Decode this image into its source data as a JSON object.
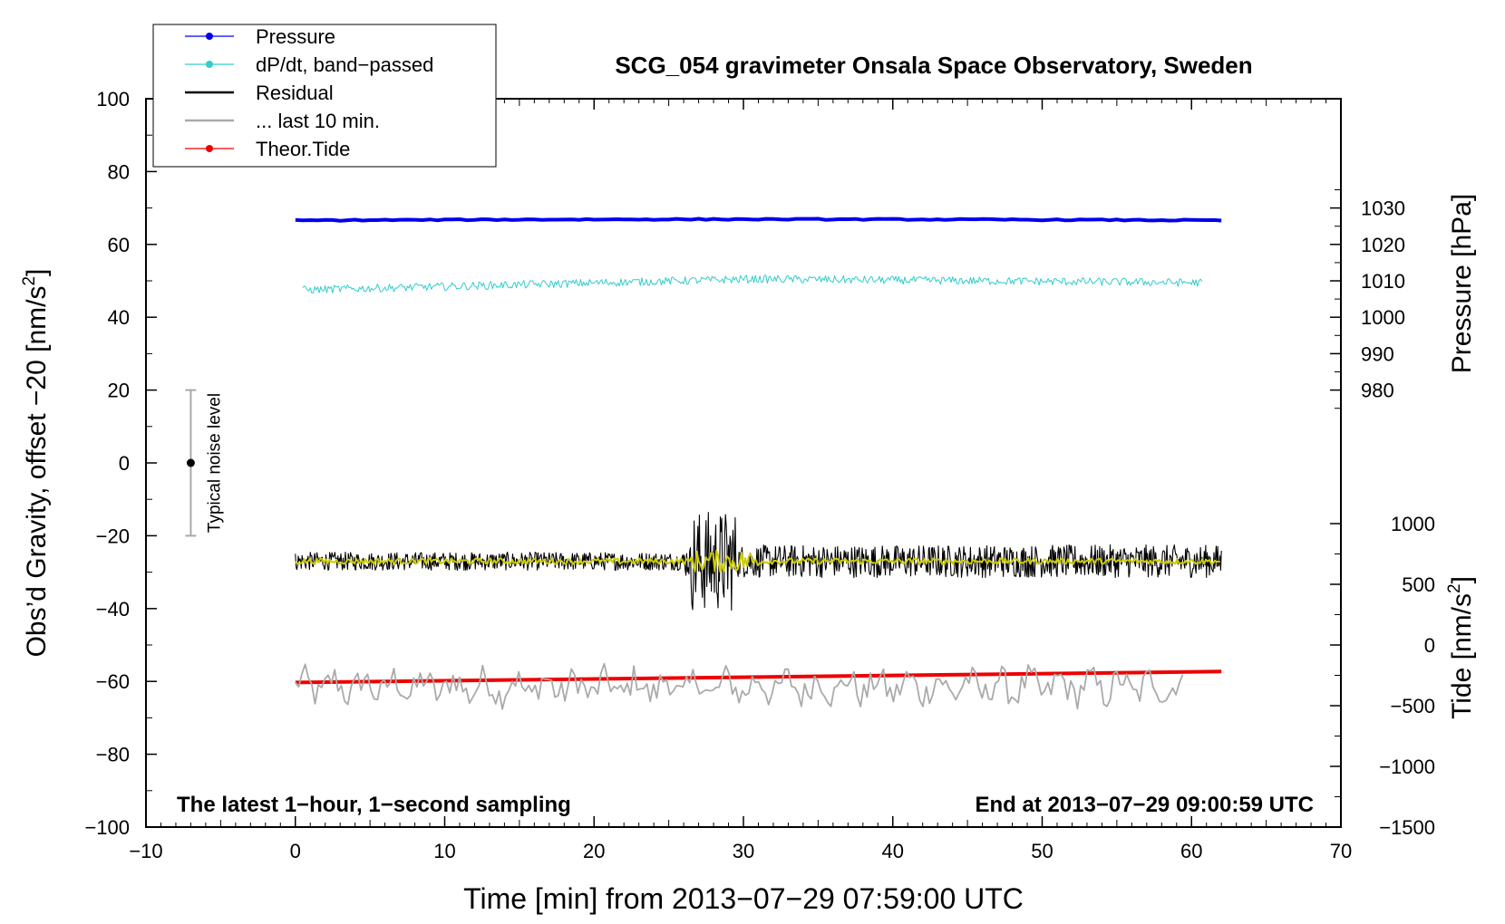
{
  "chart_data": {
    "type": "line",
    "title": "SCG_054 gravimeter Onsala Space Observatory, Sweden",
    "xlabel": "Time [min] from 2013−07−29 07:59:00 UTC",
    "ylabel_left_main": "Obs’d Gravity, offset −20 [nm/s",
    "ylabel_left_sup": "2",
    "ylabel_left_end": "]",
    "ylabel_right_top": "Pressure [hPa]",
    "ylabel_right_bottom_main": "Tide [nm/s",
    "ylabel_right_bottom_sup": "2",
    "ylabel_right_bottom_end": "]",
    "xlim": [
      -10,
      70
    ],
    "ylim": [
      -100,
      100
    ],
    "x_ticks": [
      -10,
      0,
      10,
      20,
      30,
      40,
      50,
      60,
      70
    ],
    "x_tick_labels": [
      "−10",
      "0",
      "10",
      "20",
      "30",
      "40",
      "50",
      "60",
      "70"
    ],
    "y_ticks": [
      100,
      80,
      60,
      40,
      20,
      0,
      -20,
      -40,
      -60,
      -80,
      -100
    ],
    "y_tick_labels": [
      "100",
      "80",
      "60",
      "40",
      "20",
      "0",
      "−20",
      "−40",
      "−60",
      "−80",
      "−100"
    ],
    "pressure_axis": {
      "ticks": [
        1030,
        1020,
        1010,
        1000,
        990,
        980
      ],
      "labels": [
        "1030",
        "1020",
        "1010",
        "1000",
        "990",
        "980"
      ],
      "gravity_at_1000": 40,
      "gravity_per_hpa": 1.0
    },
    "tide_axis": {
      "ticks": [
        1000,
        500,
        0,
        -500,
        -1000,
        -1500
      ],
      "labels": [
        "1000",
        "500",
        "0",
        "−500",
        "−1000",
        "−1500"
      ],
      "gravity_at_0": -50,
      "gravity_per_unit": 0.03333
    },
    "legend": [
      {
        "label": "Pressure",
        "color": "#0000ee",
        "marker": true,
        "width": 1
      },
      {
        "label": "dP/dt, band−passed",
        "color": "#33cccc",
        "marker": true,
        "width": 1
      },
      {
        "label": "Residual",
        "color": "#000000",
        "marker": false,
        "width": 2
      },
      {
        "label": "... last 10 min.",
        "color": "#aaaaaa",
        "marker": false,
        "width": 2
      },
      {
        "label": "Theor.Tide",
        "color": "#ee0000",
        "marker": true,
        "width": 1
      }
    ],
    "series": [
      {
        "name": "Pressure",
        "color": "#0000ee",
        "x_range": [
          0,
          62
        ],
        "y_start": 66.6,
        "y_end": 66.6,
        "y_mid": 66.9,
        "noise": 0.15
      },
      {
        "name": "dP/dt, band−passed",
        "color": "#33cccc",
        "x_range": [
          0.5,
          60.8
        ],
        "y_start": 47.5,
        "y_mid": 50.5,
        "y_end": 49.5,
        "noise": 1.1
      },
      {
        "name": "Residual",
        "color": "#000000",
        "x_range": [
          0,
          62
        ],
        "y_base": -27,
        "noise": 2.5,
        "burst_x": [
          26.5,
          29.5
        ],
        "burst_amp": 14,
        "noise_late": 4.5
      },
      {
        "name": "Residual (smoothed)",
        "color": "#cccc00",
        "x_range": [
          0,
          62
        ],
        "y_base": -27,
        "noise": 0.8
      },
      {
        "name": "... last 10 min.",
        "color": "#aaaaaa",
        "x_range": [
          0,
          59.5
        ],
        "y_base": -61.5,
        "noise": 4
      },
      {
        "name": "Theor.Tide",
        "color": "#ee0000",
        "x_range": [
          0,
          62
        ],
        "y_start": -60.3,
        "y_end": -57.3
      }
    ],
    "noise_bar": {
      "x": -7,
      "y_center": 0,
      "y_low": -20,
      "y_high": 20,
      "label": "Typical noise level"
    },
    "annotation_left": "The latest 1−hour, 1−second sampling",
    "annotation_right": "End at 2013−07−29 09:00:59 UTC"
  }
}
